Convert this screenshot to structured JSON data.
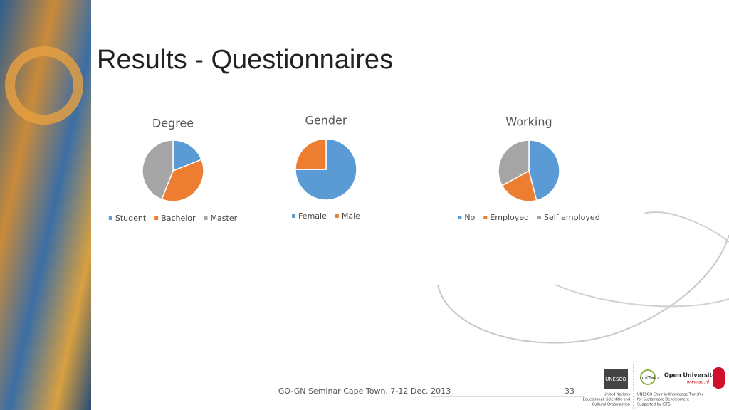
{
  "title": "Results - Questionnaires",
  "chart_data": [
    {
      "type": "pie",
      "title": "Degree",
      "categories": [
        "Student",
        "Bachelor",
        "Master"
      ],
      "values": [
        19,
        37,
        44
      ],
      "colors": [
        "#5b9bd5",
        "#ed7d31",
        "#a5a5a5"
      ]
    },
    {
      "type": "pie",
      "title": "Gender",
      "categories": [
        "Female",
        "Male"
      ],
      "values": [
        75,
        25
      ],
      "colors": [
        "#5b9bd5",
        "#ed7d31"
      ]
    },
    {
      "type": "pie",
      "title": "Working",
      "categories": [
        "No",
        "Employed",
        "Self employed"
      ],
      "values": [
        46,
        21,
        33
      ],
      "colors": [
        "#5b9bd5",
        "#ed7d31",
        "#a5a5a5"
      ]
    }
  ],
  "footer": {
    "text": "GO-GN Seminar Cape Town, 7-12 Dec. 2013",
    "page": "33"
  },
  "logos": {
    "unesco": "UNESCO",
    "unesco_lines": [
      "United Nations",
      "Educational, Scientific and",
      "Cultural Organization"
    ],
    "unitwin": "uniTwin",
    "chair_lines": [
      "UNESCO Chair in Knowledge Transfer",
      "for Sustainable Development",
      "Supported by ICTS"
    ],
    "ou": "Open Universiteit",
    "ou_url": "www.ou.nl"
  }
}
